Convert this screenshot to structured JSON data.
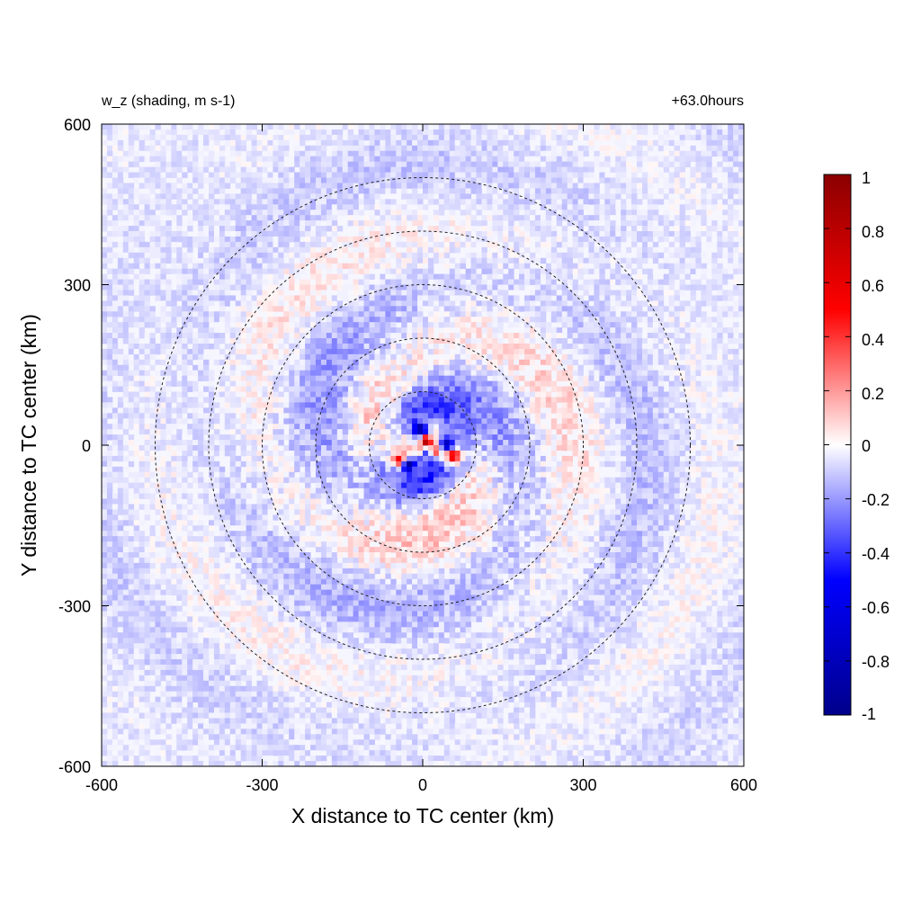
{
  "chart_data": {
    "type": "heatmap",
    "title_left": "w_z (shading, m s-1)",
    "title_right": "+63.0hours",
    "xlabel": "X distance to TC center (km)",
    "ylabel": "Y distance to TC center (km)",
    "xlim": [
      -600,
      600
    ],
    "ylim": [
      -600,
      600
    ],
    "xticks": [
      "-600",
      "-300",
      "0",
      "300",
      "600"
    ],
    "yticks": [
      "600",
      "300",
      "0",
      "-300",
      "-600"
    ],
    "colorbar": {
      "range": [
        -1,
        1
      ],
      "ticks": [
        "1",
        "0.8",
        "0.6",
        "0.4",
        "0.2",
        "0",
        "-0.2",
        "-0.4",
        "-0.6",
        "-0.8",
        "-1"
      ],
      "colors": [
        "#00008b",
        "#0000ff",
        "#ffffff",
        "#ff0000",
        "#8b0000"
      ]
    },
    "range_rings_km": [
      100,
      200,
      300,
      400,
      500
    ],
    "ring_style": "dashed",
    "field": "vertical velocity w_z, spiral bands around TC center, |w| mostly below 0.3, peaks near +-1 within 50 km of center",
    "grid": false
  }
}
